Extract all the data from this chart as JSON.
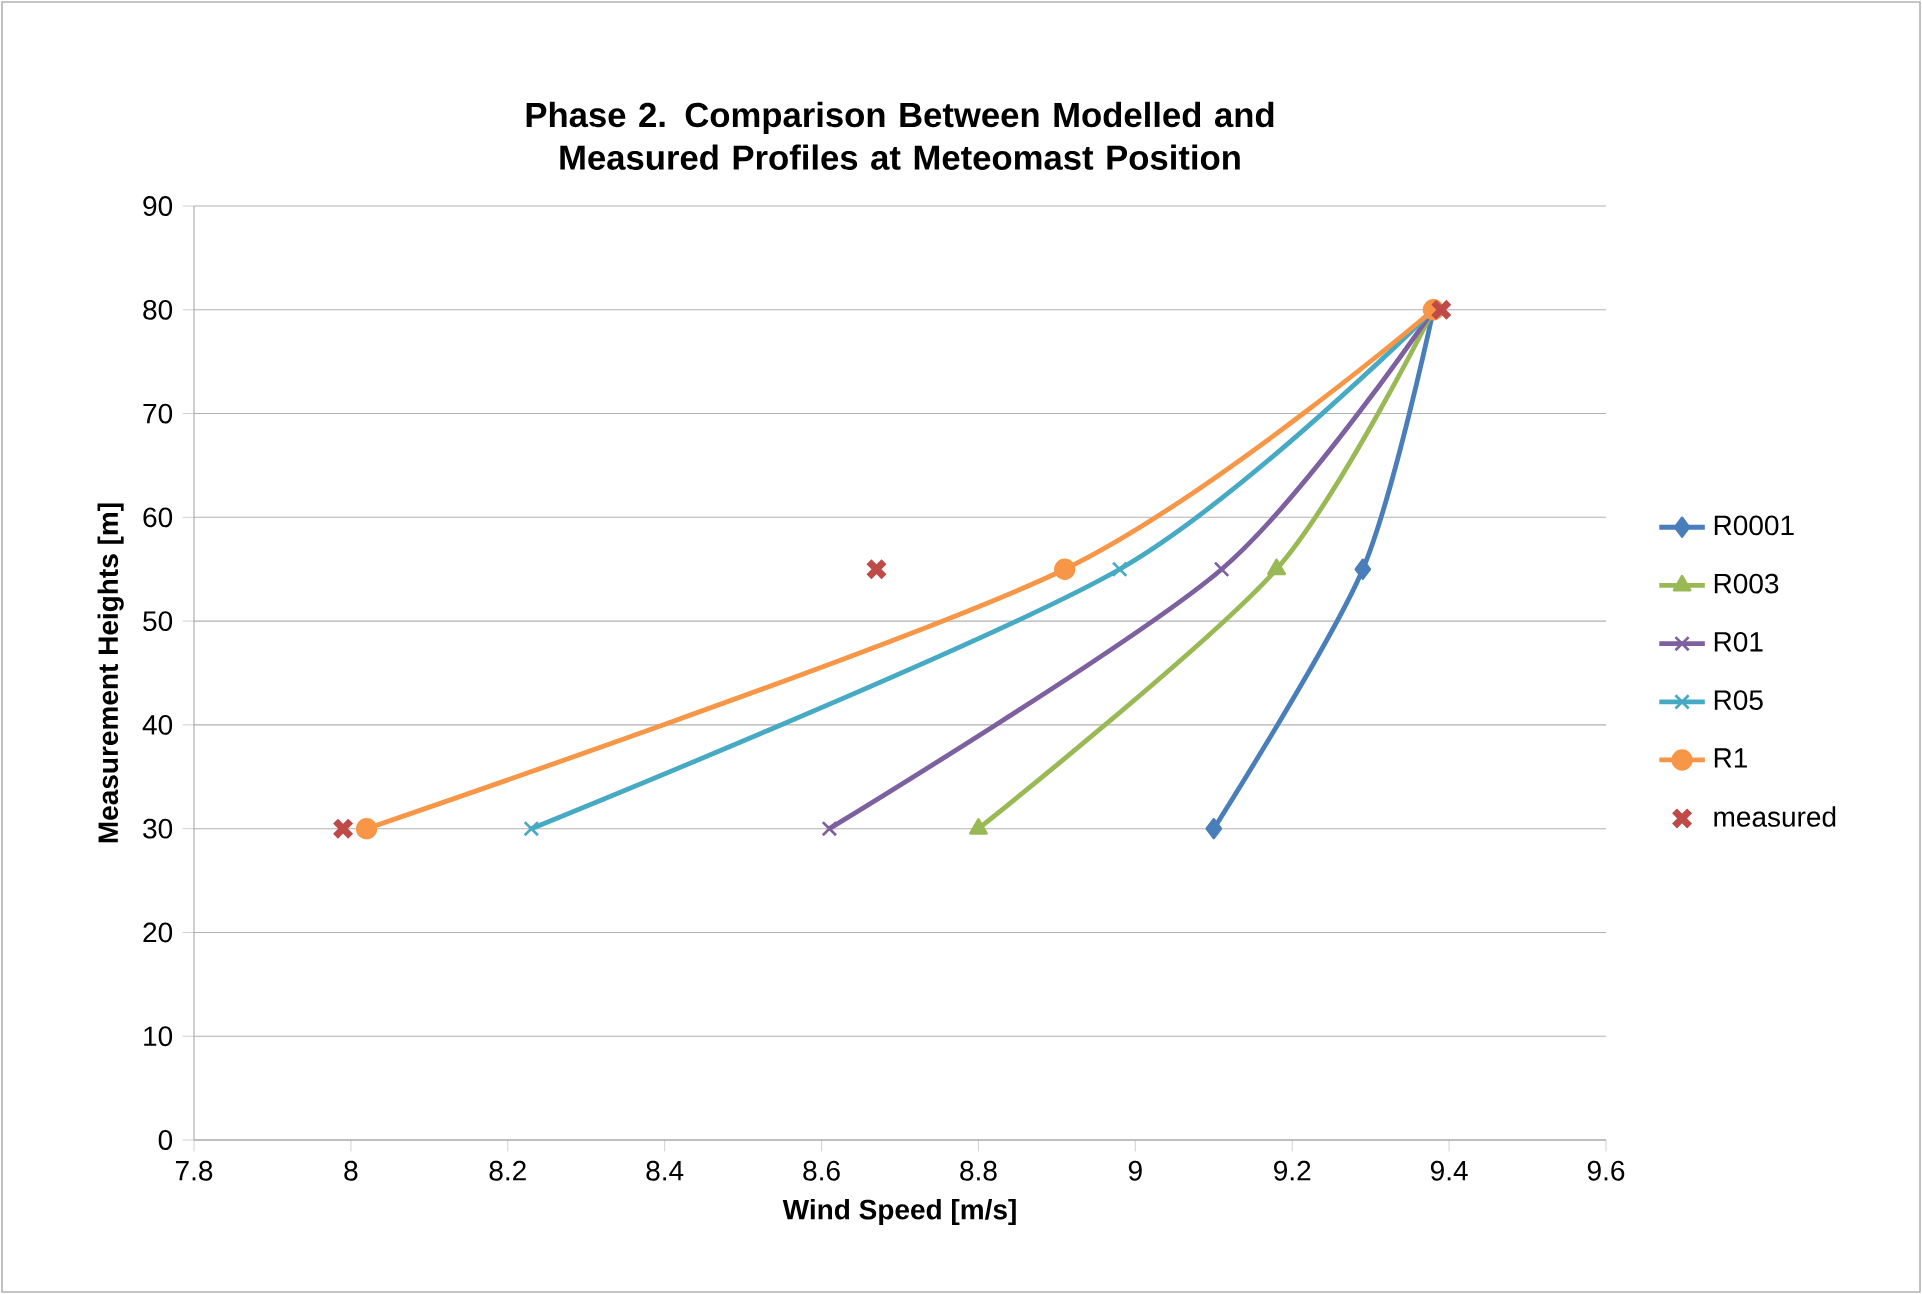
{
  "chart_data": {
    "type": "line",
    "title": "Phase 2. Comparison Between Modelled and Measured Profiles at Meteomast Position",
    "xlabel": "Wind Speed [m/s]",
    "ylabel": "Measurement Heights [m]",
    "xlim": [
      7.8,
      9.6
    ],
    "xticks": [
      7.8,
      8,
      8.2,
      8.4,
      8.6,
      8.8,
      9,
      9.2,
      9.4,
      9.6
    ],
    "ylim": [
      0,
      90
    ],
    "yticks": [
      0,
      10,
      20,
      30,
      40,
      50,
      60,
      70,
      80,
      90
    ],
    "grid": "y",
    "legend": "right",
    "line_style": "solid",
    "series": [
      {
        "name": "R0001",
        "color": "#4a7ebb",
        "marker": "diamond",
        "x": [
          9.1,
          9.29,
          9.38
        ],
        "values": [
          30,
          55,
          80
        ]
      },
      {
        "name": "R003",
        "color": "#98b954",
        "marker": "triangle",
        "x": [
          8.8,
          9.18,
          9.38
        ],
        "values": [
          30,
          55,
          80
        ]
      },
      {
        "name": "R01",
        "color": "#7d60a0",
        "marker": "cross",
        "x": [
          8.61,
          9.11,
          9.38
        ],
        "values": [
          30,
          55,
          80
        ]
      },
      {
        "name": "R05",
        "color": "#46aac5",
        "marker": "cross",
        "x": [
          8.23,
          8.98,
          9.38
        ],
        "values": [
          30,
          55,
          80
        ]
      },
      {
        "name": "R1",
        "color": "#f79646",
        "marker": "circle",
        "x": [
          8.02,
          8.91,
          9.38
        ],
        "values": [
          30,
          55,
          80
        ]
      },
      {
        "name": "measured",
        "type": "scatter",
        "color": "#be4b48",
        "marker": "cross",
        "x": [
          7.99,
          8.67,
          9.39
        ],
        "values": [
          30,
          55,
          80
        ]
      }
    ]
  }
}
